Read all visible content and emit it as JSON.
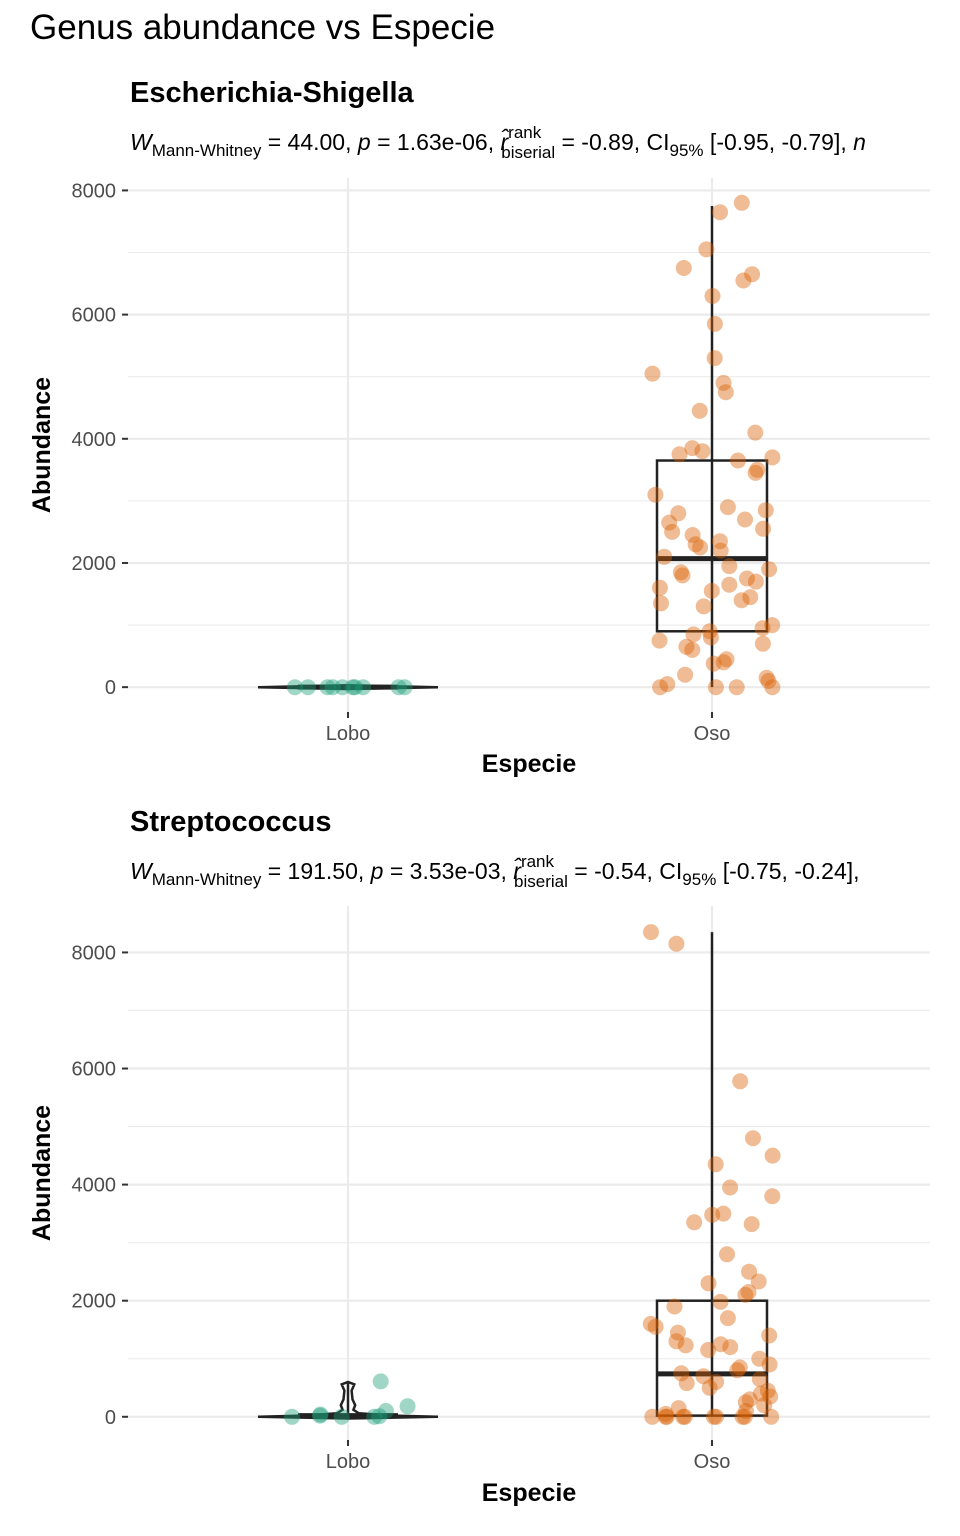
{
  "figure": {
    "title": "Genus abundance vs Especie"
  },
  "colors": {
    "lobo": "#1B9E77",
    "oso": "#D95F02",
    "box": "#222222",
    "grid": "#EBEBEB"
  },
  "chart_data": [
    {
      "type": "boxviolin-scatter",
      "title": "Escherichia-Shigella",
      "subtitle": {
        "stat_name": "W",
        "stat_sub": "Mann-Whitney",
        "stat_value": " = 44.00, ",
        "p_label": "p",
        "p_value": " = 1.63e-06, ",
        "effect_symbol": "r̂",
        "effect_sup": "rank",
        "effect_sub": "biserial",
        "effect_value": " = -0.89, CI",
        "ci_sub": "95%",
        "ci_value": " [-0.95, -0.79], ",
        "n_symbol": "n"
      },
      "xlabel": "Especie",
      "ylabel": "Abundance",
      "categories": [
        "Lobo",
        "Oso"
      ],
      "ylim": [
        -400,
        8200
      ],
      "yticks": [
        0,
        2000,
        4000,
        6000,
        8000
      ],
      "ytick_labels": [
        "0",
        "2000",
        "4000",
        "6000",
        "8000"
      ],
      "box": {
        "Oso": {
          "q1": 900,
          "median": 2070,
          "q3": 3650,
          "whisker_low": 0,
          "whisker_high": 7750
        },
        "Lobo": {
          "q1": 0,
          "median": 0,
          "q3": 0,
          "whisker_low": 0,
          "whisker_high": 0
        }
      },
      "points": {
        "Lobo": [
          0,
          0,
          0,
          0,
          0,
          0,
          0,
          0,
          0,
          0
        ],
        "Oso": [
          7800,
          7650,
          7050,
          6750,
          6650,
          6550,
          6300,
          5850,
          5300,
          5050,
          4900,
          4750,
          4450,
          4100,
          3850,
          3800,
          3750,
          3700,
          3650,
          3500,
          3450,
          3100,
          2900,
          2850,
          2800,
          2700,
          2650,
          2550,
          2500,
          2450,
          2350,
          2300,
          2250,
          2200,
          2100,
          1950,
          1900,
          1850,
          1800,
          1750,
          1700,
          1650,
          1600,
          1550,
          1450,
          1400,
          1350,
          1300,
          1000,
          950,
          900,
          850,
          800,
          750,
          700,
          650,
          600,
          450,
          400,
          380,
          200,
          150,
          100,
          50,
          0,
          0,
          0,
          0
        ]
      },
      "violin": {
        "Lobo": {
          "levels": [
            -30,
            0,
            30
          ],
          "halfwidths": [
            0,
            1.0,
            0
          ]
        }
      }
    },
    {
      "type": "boxviolin-scatter",
      "title": "Streptococcus",
      "subtitle": {
        "stat_name": "W",
        "stat_sub": "Mann-Whitney",
        "stat_value": " = 191.50, ",
        "p_label": "p",
        "p_value": " = 3.53e-03, ",
        "effect_symbol": "r̂",
        "effect_sup": "rank",
        "effect_sub": "biserial",
        "effect_value": " = -0.54, CI",
        "ci_sub": "95%",
        "ci_value": " [-0.75, -0.24], ",
        "n_symbol": ""
      },
      "xlabel": "Especie",
      "ylabel": "Abundance",
      "categories": [
        "Lobo",
        "Oso"
      ],
      "ylim": [
        -400,
        8800
      ],
      "yticks": [
        0,
        2000,
        4000,
        6000,
        8000
      ],
      "ytick_labels": [
        "0",
        "2000",
        "4000",
        "6000",
        "8000"
      ],
      "box": {
        "Oso": {
          "q1": 20,
          "median": 740,
          "q3": 2000,
          "whisker_low": 0,
          "whisker_high": 8350
        },
        "Lobo": {
          "q1": 0,
          "median": 20,
          "q3": 40,
          "whisker_low": 0,
          "whisker_high": 600
        }
      },
      "points": {
        "Lobo": [
          610,
          180,
          100,
          40,
          20,
          10,
          0,
          0,
          0
        ],
        "Oso": [
          8350,
          8150,
          5780,
          4800,
          4500,
          4350,
          3950,
          3800,
          3500,
          3480,
          3350,
          3320,
          2800,
          2500,
          2330,
          2300,
          2150,
          2100,
          1980,
          1900,
          1700,
          1600,
          1550,
          1450,
          1400,
          1300,
          1250,
          1230,
          1200,
          1150,
          1000,
          900,
          850,
          800,
          750,
          700,
          650,
          600,
          580,
          500,
          450,
          400,
          350,
          300,
          250,
          200,
          150,
          100,
          50,
          0,
          0,
          0,
          0,
          0,
          0,
          0,
          0,
          0,
          0
        ]
      },
      "violin": {
        "Lobo": {
          "levels": [
            -30,
            0,
            20,
            60,
            120,
            200,
            300,
            450,
            560,
            600
          ],
          "halfwidths": [
            0,
            1.0,
            0.5,
            0.12,
            0.06,
            0.08,
            0.05,
            0.04,
            0.07,
            0
          ]
        }
      }
    }
  ]
}
